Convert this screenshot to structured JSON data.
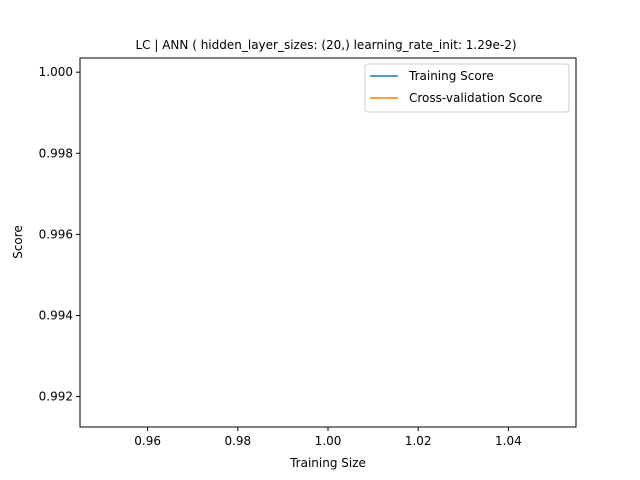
{
  "chart_data": {
    "type": "line",
    "title": "LC | ANN ( hidden_layer_sizes: (20,) learning_rate_init: 1.29e-2)",
    "xlabel": "Training Size",
    "ylabel": "Score",
    "xlim": [
      0.945,
      1.055
    ],
    "ylim": [
      0.99125,
      1.00035
    ],
    "xticks": [
      {
        "value": 0.96,
        "label": "0.96"
      },
      {
        "value": 0.98,
        "label": "0.98"
      },
      {
        "value": 1.0,
        "label": "1.00"
      },
      {
        "value": 1.02,
        "label": "1.02"
      },
      {
        "value": 1.04,
        "label": "1.04"
      }
    ],
    "yticks": [
      {
        "value": 0.992,
        "label": "0.992"
      },
      {
        "value": 0.994,
        "label": "0.994"
      },
      {
        "value": 0.996,
        "label": "0.996"
      },
      {
        "value": 0.998,
        "label": "0.998"
      },
      {
        "value": 1.0,
        "label": "1.000"
      }
    ],
    "grid": false,
    "legend_position": "top-right",
    "series": [
      {
        "name": "Training Score",
        "color": "#1f77b4",
        "x": [
          1.0
        ],
        "y": [
          1.0
        ]
      },
      {
        "name": "Cross-validation Score",
        "color": "#ff7f0e",
        "x": [
          1.0
        ],
        "y": [
          1.0
        ]
      }
    ]
  }
}
